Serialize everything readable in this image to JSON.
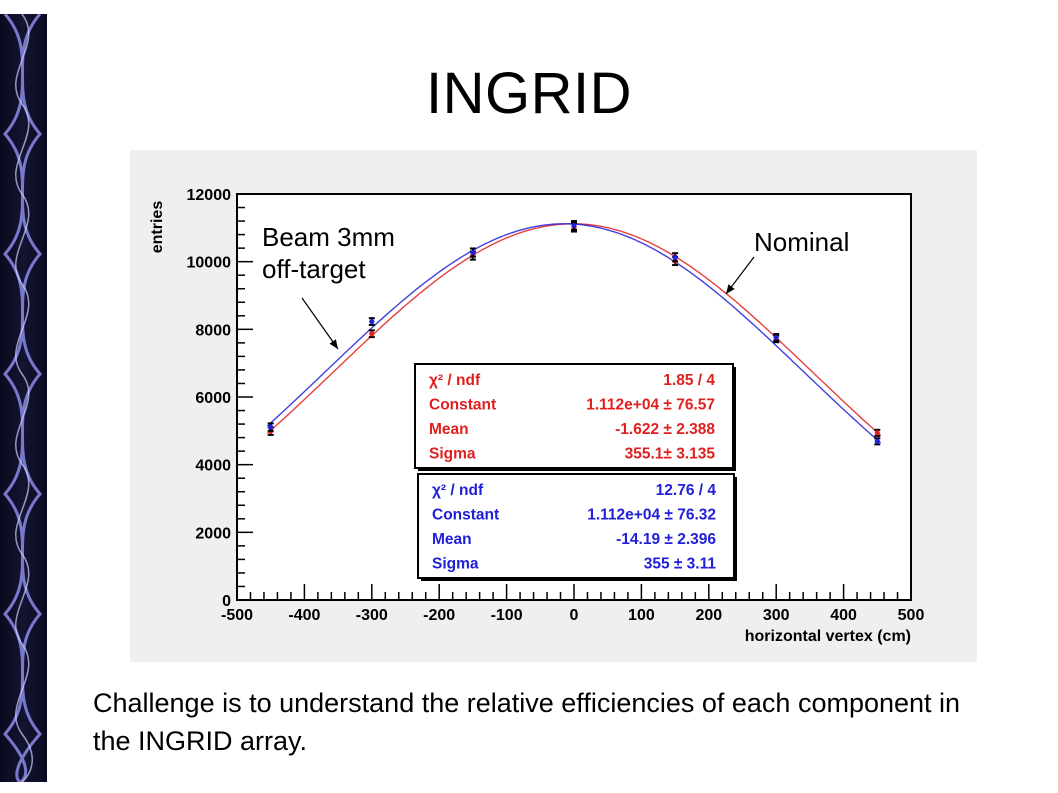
{
  "slide": {
    "title": "INGRID",
    "body_text": "Challenge is to understand the relative efficiencies of each component in the INGRID array."
  },
  "chart_data": {
    "type": "scatter",
    "xlabel": "horizontal vertex (cm)",
    "ylabel": "entries",
    "xlim": [
      -500,
      500
    ],
    "ylim": [
      0,
      12000
    ],
    "x_ticks": [
      -500,
      -400,
      -300,
      -200,
      -100,
      0,
      100,
      200,
      300,
      400,
      500
    ],
    "x_tick_labels": [
      "-500",
      "-400",
      "-300",
      "-200",
      "-100",
      "0",
      "100",
      "200",
      "300",
      "400",
      "500"
    ],
    "y_ticks": [
      0,
      2000,
      4000,
      6000,
      8000,
      10000,
      12000
    ],
    "y_tick_labels": [
      "0",
      "2000",
      "4000",
      "6000",
      "8000",
      "10000",
      "12000"
    ],
    "grid": false,
    "annotations": [
      {
        "text": "Beam 3mm\noff-target",
        "lines": [
          "Beam 3mm",
          "off-target"
        ],
        "points_to_series": "blue"
      },
      {
        "text": "Nominal",
        "lines": [
          "Nominal"
        ],
        "points_to_series": "red"
      }
    ],
    "series": [
      {
        "color": "#e02020",
        "x": [
          -450,
          -300,
          -150,
          0,
          150,
          300,
          450
        ],
        "y": [
          4990,
          7870,
          10180,
          11020,
          10020,
          7720,
          4940
        ],
        "err": [
          110,
          100,
          120,
          130,
          120,
          100,
          90
        ],
        "fit": {
          "amplitude": 11120,
          "mean": -1.622,
          "sigma": 355.1
        },
        "stats": {
          "rows": [
            {
              "label": "χ² / ndf",
              "value": "1.85 / 4"
            },
            {
              "label": "Constant",
              "value": "1.112e+04 ± 76.57"
            },
            {
              "label": "Mean",
              "value": "-1.622 ± 2.388"
            },
            {
              "label": "Sigma",
              "value": "355.1± 3.135"
            }
          ]
        }
      },
      {
        "color": "#2020d8",
        "x": [
          -450,
          -300,
          -150,
          0,
          150,
          300,
          450
        ],
        "y": [
          5110,
          8230,
          10270,
          11070,
          10130,
          7760,
          4690
        ],
        "err": [
          110,
          100,
          120,
          130,
          120,
          100,
          90
        ],
        "fit": {
          "amplitude": 11120,
          "mean": -14.19,
          "sigma": 355
        },
        "stats": {
          "rows": [
            {
              "label": "χ² / ndf",
              "value": "12.76 / 4"
            },
            {
              "label": "Constant",
              "value": "1.112e+04 ± 76.32"
            },
            {
              "label": "Mean",
              "value": "-14.19 ± 2.396"
            },
            {
              "label": "Sigma",
              "value": "355 ± 3.11"
            }
          ]
        }
      }
    ]
  }
}
